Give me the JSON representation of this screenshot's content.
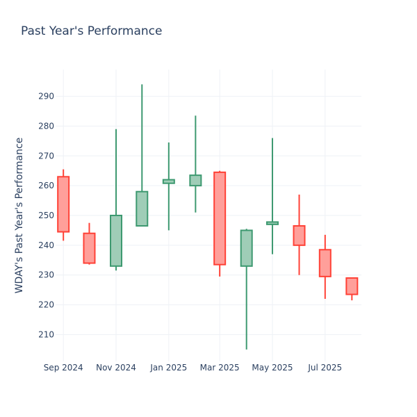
{
  "chart_data": {
    "type": "candlestick",
    "title": "Past Year's Performance",
    "xlabel": "",
    "ylabel": "WDAY's Past Year's Performance",
    "ylim": [
      201,
      299
    ],
    "yticks": [
      210,
      220,
      230,
      240,
      250,
      260,
      270,
      280,
      290
    ],
    "xlim": [
      "2024-08-23",
      "2025-08-12"
    ],
    "xticks": [
      {
        "date": "2024-09-01",
        "label": "Sep 2024"
      },
      {
        "date": "2024-11-01",
        "label": "Nov 2024"
      },
      {
        "date": "2025-01-01",
        "label": "Jan 2025"
      },
      {
        "date": "2025-03-01",
        "label": "Mar 2025"
      },
      {
        "date": "2025-05-01",
        "label": "May 2025"
      },
      {
        "date": "2025-07-01",
        "label": "Jul 2025"
      }
    ],
    "increasing_color": "#3d9970",
    "increasing_fill": "#9fcdb7",
    "decreasing_color": "#ff4136",
    "decreasing_fill": "#ff9f9a",
    "grid": true,
    "candles": [
      {
        "date": "2024-09-01",
        "open": 263.0,
        "high": 265.5,
        "low": 241.5,
        "close": 244.5
      },
      {
        "date": "2024-10-01",
        "open": 244.0,
        "high": 247.5,
        "low": 233.5,
        "close": 234.0
      },
      {
        "date": "2024-11-01",
        "open": 233.0,
        "high": 279.0,
        "low": 231.5,
        "close": 250.0
      },
      {
        "date": "2024-12-01",
        "open": 246.5,
        "high": 294.0,
        "low": 246.5,
        "close": 258.0
      },
      {
        "date": "2025-01-01",
        "open": 260.8,
        "high": 274.5,
        "low": 245.0,
        "close": 262.0
      },
      {
        "date": "2025-02-01",
        "open": 260.0,
        "high": 283.5,
        "low": 251.0,
        "close": 263.5
      },
      {
        "date": "2025-03-01",
        "open": 264.5,
        "high": 265.0,
        "low": 229.5,
        "close": 233.5
      },
      {
        "date": "2025-04-01",
        "open": 233.0,
        "high": 245.5,
        "low": 205.0,
        "close": 245.0
      },
      {
        "date": "2025-05-01",
        "open": 247.0,
        "high": 276.0,
        "low": 237.0,
        "close": 247.8
      },
      {
        "date": "2025-06-01",
        "open": 246.5,
        "high": 257.0,
        "low": 230.0,
        "close": 240.0
      },
      {
        "date": "2025-07-01",
        "open": 238.5,
        "high": 243.5,
        "low": 222.0,
        "close": 229.5
      },
      {
        "date": "2025-08-01",
        "open": 229.0,
        "high": 229.0,
        "low": 221.5,
        "close": 223.5
      }
    ]
  }
}
